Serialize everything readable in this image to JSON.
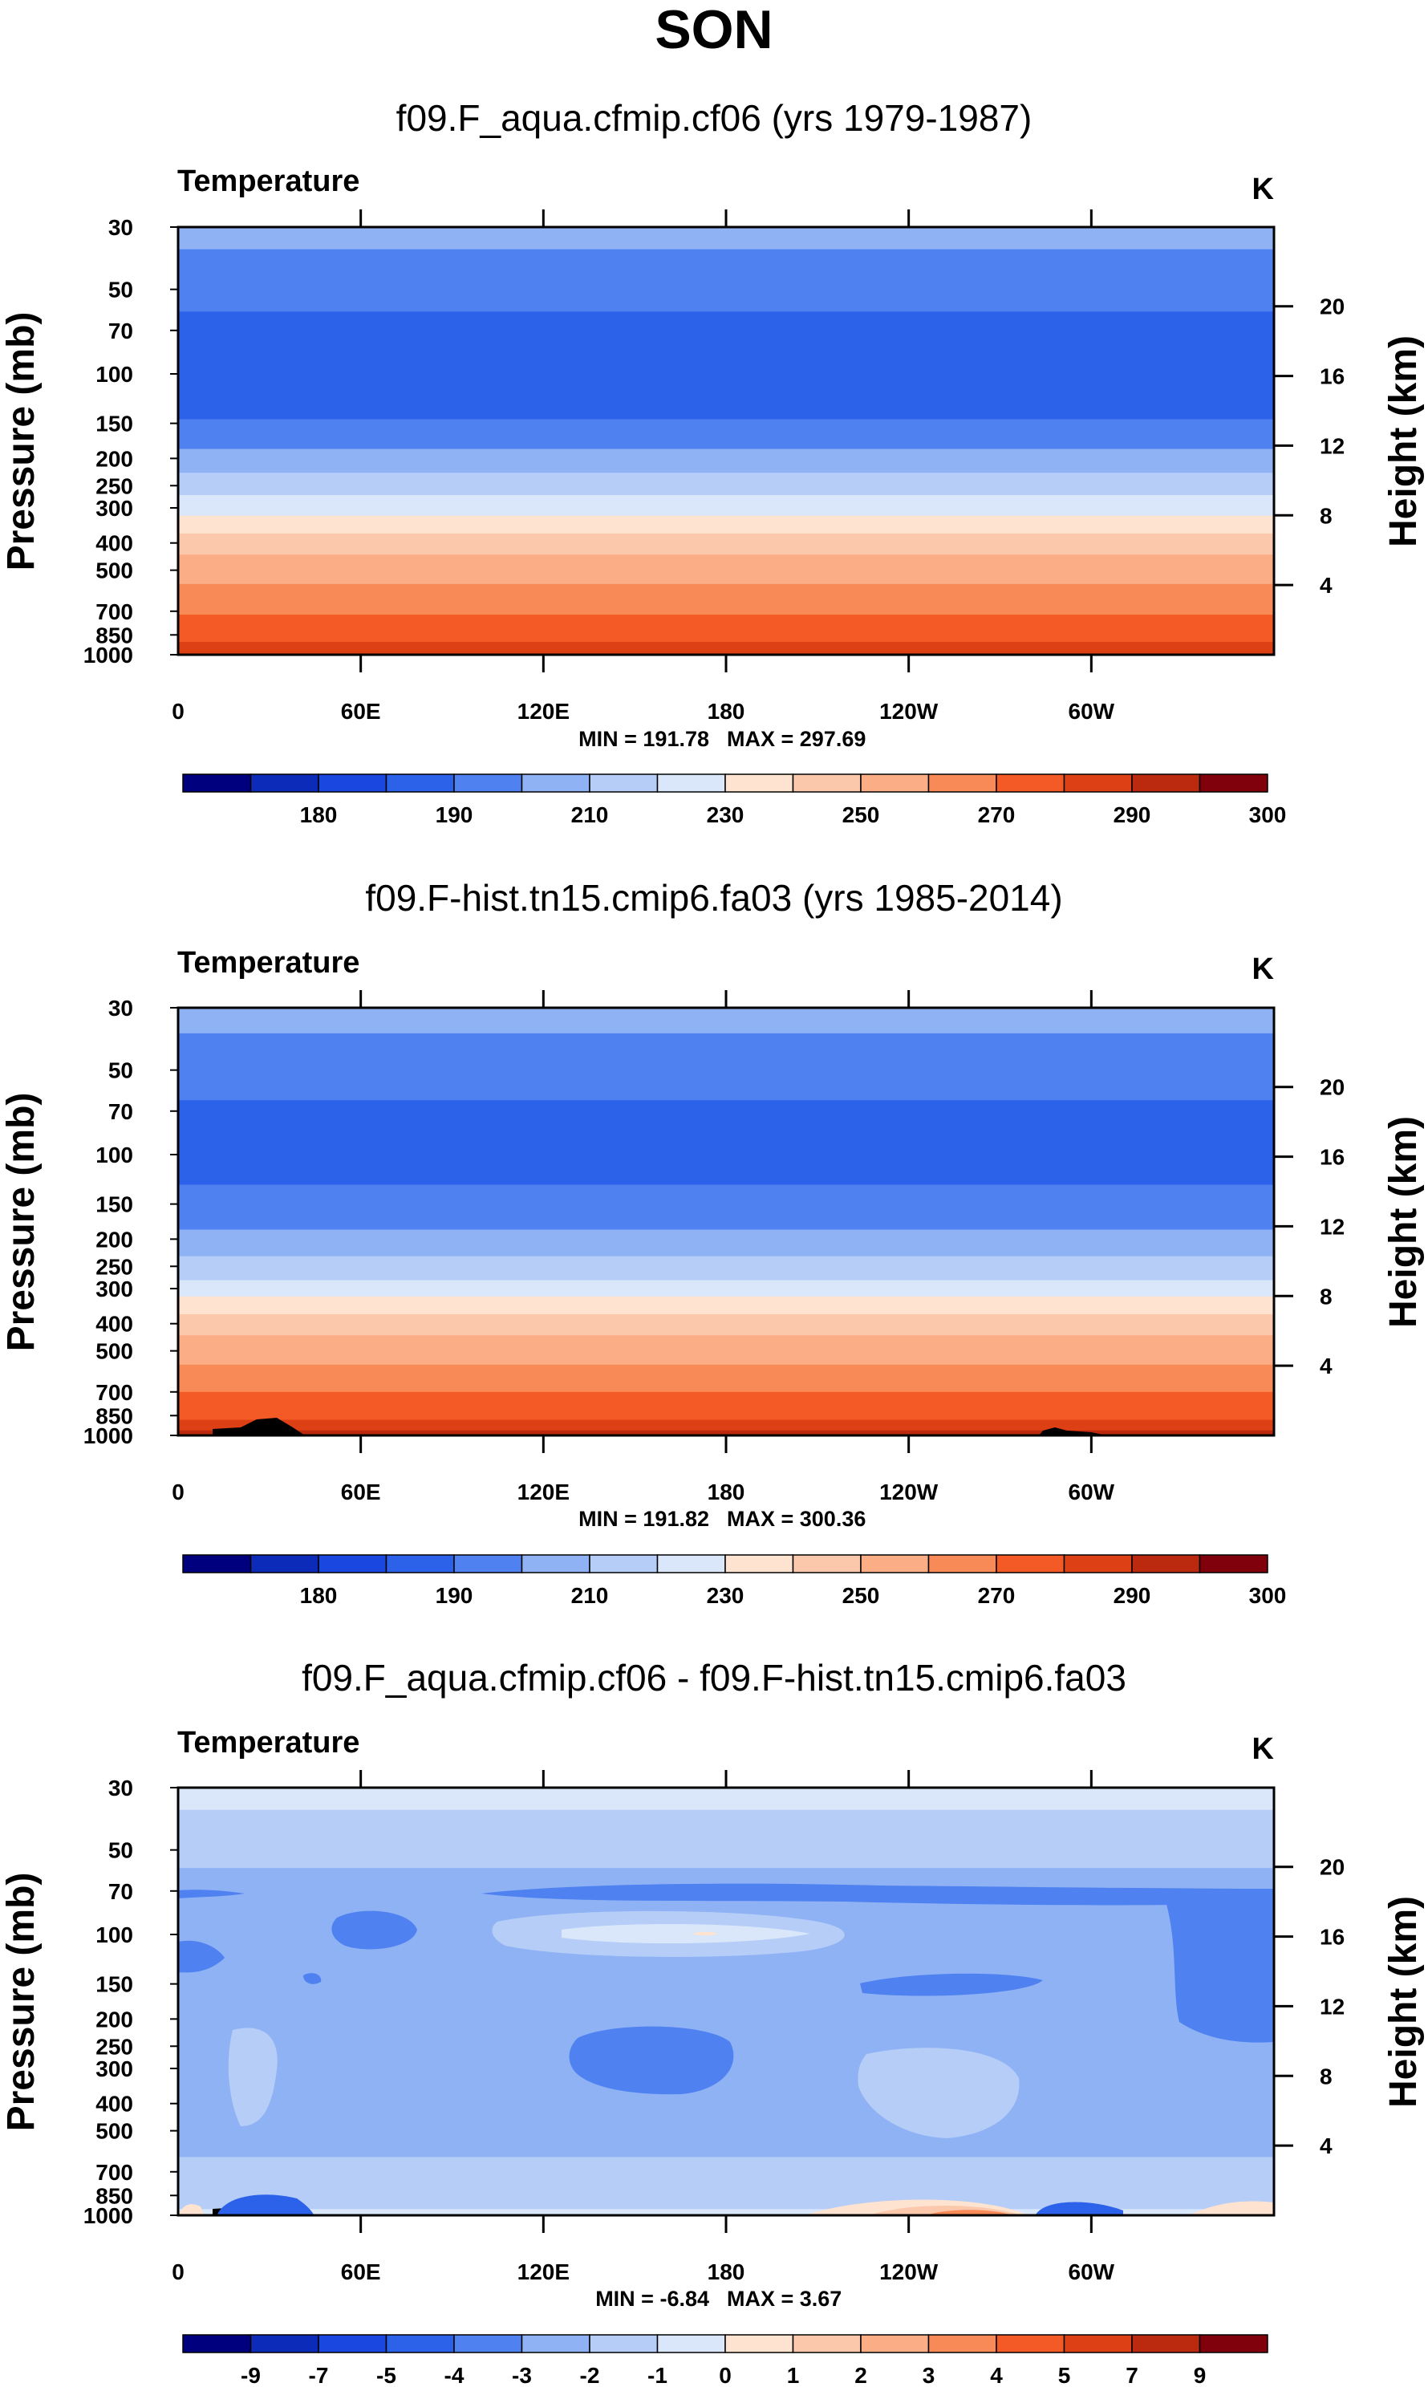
{
  "title": "SON",
  "chart_data": [
    {
      "type": "heatmap",
      "title": "f09.F_aqua.cfmip.cf06 (yrs 1979-1987)",
      "variable": "Temperature",
      "units": "K",
      "xlabel": "",
      "ylabel": "Pressure (mb)",
      "y2label": "Height (km)",
      "x_ticks": [
        "0",
        "60E",
        "120E",
        "180",
        "120W",
        "60W"
      ],
      "y_ticks": [
        "30",
        "50",
        "70",
        "100",
        "150",
        "200",
        "250",
        "300",
        "400",
        "500",
        "700",
        "850",
        "1000"
      ],
      "y2_ticks": [
        "20",
        "16",
        "12",
        "8",
        "4"
      ],
      "min_text": "MIN = 191.78",
      "max_text": "MAX = 297.69",
      "min": 191.78,
      "max": 297.69,
      "colorbar_labels": [
        "180",
        "190",
        "210",
        "230",
        "250",
        "270",
        "290",
        "300"
      ],
      "levels": [
        {
          "p_top": 30,
          "p_bot": 36,
          "color": "#8fb2f5"
        },
        {
          "p_top": 36,
          "p_bot": 60,
          "color": "#4f82f0"
        },
        {
          "p_top": 60,
          "p_bot": 145,
          "color": "#2c61ea"
        },
        {
          "p_top": 145,
          "p_bot": 185,
          "color": "#4f82f0"
        },
        {
          "p_top": 185,
          "p_bot": 225,
          "color": "#8fb2f5"
        },
        {
          "p_top": 225,
          "p_bot": 270,
          "color": "#b5cdf7"
        },
        {
          "p_top": 270,
          "p_bot": 320,
          "color": "#dae6fa"
        },
        {
          "p_top": 320,
          "p_bot": 370,
          "color": "#fde3d0"
        },
        {
          "p_top": 370,
          "p_bot": 440,
          "color": "#fcc8ab"
        },
        {
          "p_top": 440,
          "p_bot": 560,
          "color": "#fbad86"
        },
        {
          "p_top": 560,
          "p_bot": 720,
          "color": "#f88a58"
        },
        {
          "p_top": 720,
          "p_bot": 900,
          "color": "#f45a25"
        },
        {
          "p_top": 900,
          "p_bot": 1000,
          "color": "#dd4015"
        }
      ]
    },
    {
      "type": "heatmap",
      "title": "f09.F-hist.tn15.cmip6.fa03 (yrs 1985-2014)",
      "variable": "Temperature",
      "units": "K",
      "xlabel": "",
      "ylabel": "Pressure (mb)",
      "y2label": "Height (km)",
      "x_ticks": [
        "0",
        "60E",
        "120E",
        "180",
        "120W",
        "60W"
      ],
      "y_ticks": [
        "30",
        "50",
        "70",
        "100",
        "150",
        "200",
        "250",
        "300",
        "400",
        "500",
        "700",
        "850",
        "1000"
      ],
      "y2_ticks": [
        "20",
        "16",
        "12",
        "8",
        "4"
      ],
      "min_text": "MIN = 191.82",
      "max_text": "MAX = 300.36",
      "min": 191.82,
      "max": 300.36,
      "colorbar_labels": [
        "180",
        "190",
        "210",
        "230",
        "250",
        "270",
        "290",
        "300"
      ],
      "levels": [
        {
          "p_top": 30,
          "p_bot": 37,
          "color": "#8fb2f5"
        },
        {
          "p_top": 37,
          "p_bot": 64,
          "color": "#4f82f0"
        },
        {
          "p_top": 64,
          "p_bot": 128,
          "color": "#2c61ea"
        },
        {
          "p_top": 128,
          "p_bot": 185,
          "color": "#4f82f0"
        },
        {
          "p_top": 185,
          "p_bot": 230,
          "color": "#8fb2f5"
        },
        {
          "p_top": 230,
          "p_bot": 280,
          "color": "#b5cdf7"
        },
        {
          "p_top": 280,
          "p_bot": 320,
          "color": "#dae6fa"
        },
        {
          "p_top": 320,
          "p_bot": 370,
          "color": "#fde3d0"
        },
        {
          "p_top": 370,
          "p_bot": 440,
          "color": "#fcc8ab"
        },
        {
          "p_top": 440,
          "p_bot": 560,
          "color": "#fbad86"
        },
        {
          "p_top": 560,
          "p_bot": 700,
          "color": "#f88a58"
        },
        {
          "p_top": 700,
          "p_bot": 880,
          "color": "#f45a25"
        },
        {
          "p_top": 880,
          "p_bot": 960,
          "color": "#dd4015"
        },
        {
          "p_top": 960,
          "p_bot": 1000,
          "color": "#bb2a0e"
        }
      ]
    },
    {
      "type": "heatmap",
      "title": "f09.F_aqua.cfmip.cf06 - f09.F-hist.tn15.cmip6.fa03",
      "variable": "Temperature",
      "units": "K",
      "xlabel": "",
      "ylabel": "Pressure (mb)",
      "y2label": "Height (km)",
      "x_ticks": [
        "0",
        "60E",
        "120E",
        "180",
        "120W",
        "60W"
      ],
      "y_ticks": [
        "30",
        "50",
        "70",
        "100",
        "150",
        "200",
        "250",
        "300",
        "400",
        "500",
        "700",
        "850",
        "1000"
      ],
      "y2_ticks": [
        "20",
        "16",
        "12",
        "8",
        "4"
      ],
      "min_text": "MIN =  -6.84",
      "max_text": "MAX =   3.67",
      "min": -6.84,
      "max": 3.67,
      "colorbar_labels": [
        "-9",
        "-7",
        "-5",
        "-4",
        "-3",
        "-2",
        "-1",
        "0",
        "1",
        "2",
        "3",
        "4",
        "5",
        "7",
        "9"
      ],
      "levels": [
        {
          "p_top": 30,
          "p_bot": 36,
          "color": "#dae6fa"
        },
        {
          "p_top": 36,
          "p_bot": 58,
          "color": "#b5cdf7"
        },
        {
          "p_top": 58,
          "p_bot": 620,
          "color": "#8fb2f5"
        },
        {
          "p_top": 620,
          "p_bot": 950,
          "color": "#b5cdf7"
        },
        {
          "p_top": 950,
          "p_bot": 1000,
          "color": "#dae6fa"
        }
      ]
    }
  ],
  "colorbar_colors": [
    "#00007f",
    "#0c2bb8",
    "#1947e0",
    "#2c61ea",
    "#4f82f0",
    "#8fb2f5",
    "#b5cdf7",
    "#dae6fa",
    "#fde3d0",
    "#fcc8ab",
    "#fbad86",
    "#f88a58",
    "#f45a25",
    "#dd4015",
    "#bb2a0e",
    "#80000c"
  ]
}
